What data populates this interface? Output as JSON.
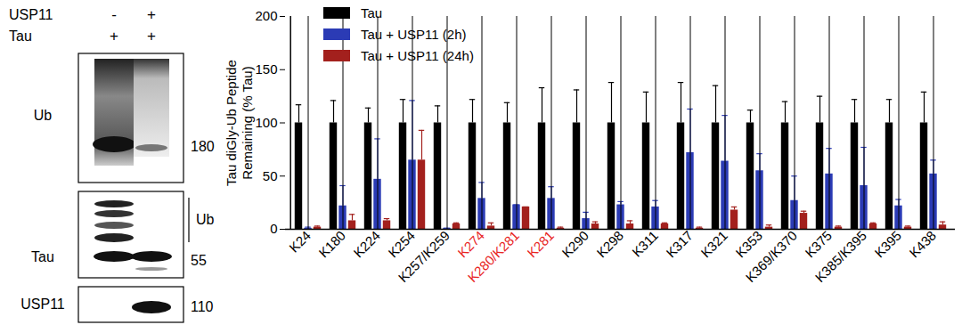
{
  "chart_data": {
    "type": "bar",
    "ylabel": "Tau diGly-Ub Peptide\nRemaining (% Tau)",
    "categories": [
      "K24",
      "K180",
      "K224",
      "K254",
      "K257/K259",
      "K274",
      "K280/K281",
      "K281",
      "K290",
      "K298",
      "K311",
      "K317",
      "K321",
      "K353",
      "K369/K370",
      "K375",
      "K385/K395",
      "K395",
      "K438"
    ],
    "highlighted": {
      "categories": [
        "K274",
        "K280/K281",
        "K281"
      ],
      "color": "#e8251f"
    },
    "series": [
      {
        "name": "Tau",
        "color": "#000000",
        "values": [
          100,
          100,
          100,
          100,
          100,
          100,
          100,
          100,
          100,
          100,
          100,
          100,
          100,
          100,
          100,
          100,
          100,
          100,
          100
        ],
        "errors": [
          17,
          21,
          14,
          22,
          16,
          22,
          19,
          33,
          31,
          38,
          29,
          38,
          35,
          12,
          20,
          25,
          22,
          22,
          29
        ]
      },
      {
        "name": "Tau + USP11 (2h)",
        "color": "#2b3bb5",
        "values": [
          1,
          22,
          47,
          65,
          1,
          29,
          23,
          29,
          10,
          23,
          21,
          72,
          64,
          55,
          27,
          52,
          41,
          22,
          52
        ],
        "errors": [
          1,
          19,
          38,
          56,
          0,
          15,
          0,
          11,
          6,
          3,
          6,
          41,
          43,
          16,
          23,
          24,
          36,
          6,
          13
        ]
      },
      {
        "name": "Tau + USP11 (24h)",
        "color": "#a3201d",
        "values": [
          2,
          8,
          8,
          65,
          5,
          3,
          21,
          1,
          5,
          5,
          5,
          1,
          18,
          2,
          15,
          2,
          5,
          2,
          4
        ],
        "errors": [
          1,
          6,
          2,
          28,
          1,
          3,
          0,
          1,
          2,
          3,
          1,
          1,
          3,
          2,
          2,
          1,
          1,
          1,
          3
        ]
      }
    ],
    "ylim": [
      0,
      200
    ],
    "yticks": [
      0,
      50,
      100,
      150,
      200
    ],
    "legend": "top-left",
    "grid": false
  },
  "blot": {
    "conditions": [
      {
        "label": "USP11",
        "lanes": [
          "-",
          "+"
        ]
      },
      {
        "label": "Tau",
        "lanes": [
          "+",
          "+"
        ]
      }
    ],
    "panels": [
      {
        "label": "Ub",
        "marker": 180
      },
      {
        "label": "Tau",
        "bracket_label": "Ub",
        "marker": 55
      },
      {
        "label": "USP11",
        "marker": 110
      }
    ]
  }
}
